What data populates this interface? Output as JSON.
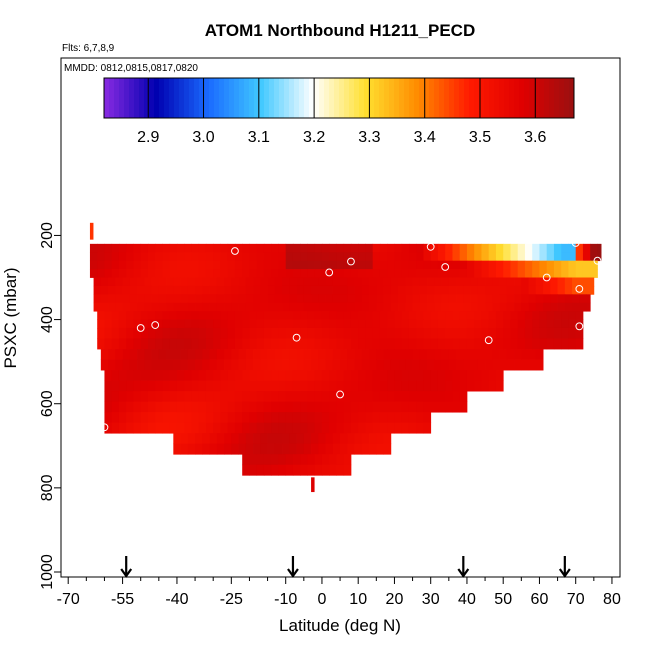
{
  "chart_data": {
    "type": "heatmap",
    "title": "ATOM1 Northbound H1211_PECD",
    "annotations": [
      "Flts: 6,7,8,9",
      "MMDD: 0812,0815,0817,0820"
    ],
    "xlabel": "Latitude (deg N)",
    "ylabel": "PSXC (mbar)",
    "xlim": [
      -70,
      85
    ],
    "ylim": [
      1000,
      0
    ],
    "y_reversed": true,
    "grid": false,
    "x_ticks": [
      -70,
      -55,
      -40,
      -25,
      -10,
      0,
      10,
      20,
      30,
      40,
      50,
      60,
      70,
      80
    ],
    "x_tick_labels": [
      "-70",
      "-55",
      "-40",
      "-25",
      "-10",
      "0",
      "10",
      "20",
      "30",
      "40",
      "50",
      "60",
      "70",
      "80"
    ],
    "y_ticks": [
      200,
      400,
      600,
      800,
      1000
    ],
    "y_tick_labels": [
      "200",
      "400",
      "600",
      "800",
      "1000"
    ],
    "colorbar": {
      "placement": "top",
      "range": [
        2.82,
        3.67
      ],
      "ticks": [
        2.9,
        3.0,
        3.1,
        3.2,
        3.3,
        3.4,
        3.5,
        3.6
      ],
      "tick_labels": [
        "2.9",
        "3.0",
        "3.1",
        "3.2",
        "3.3",
        "3.4",
        "3.5",
        "3.6"
      ],
      "colors": [
        "#8a2be2",
        "#0000b0",
        "#1a6bff",
        "#40c8ff",
        "#ffffff",
        "#ffe030",
        "#ff8c00",
        "#ff1a00",
        "#e00000",
        "#9a1010"
      ]
    },
    "latitude_markers": [
      -54,
      -8,
      39,
      67
    ],
    "pressure_bands": [
      {
        "p": [
          220,
          260
        ],
        "lat": [
          -64,
          77
        ]
      },
      {
        "p": [
          260,
          300
        ],
        "lat": [
          -64,
          76
        ]
      },
      {
        "p": [
          300,
          340
        ],
        "lat": [
          -63,
          75
        ]
      },
      {
        "p": [
          340,
          380
        ],
        "lat": [
          -63,
          74
        ]
      },
      {
        "p": [
          380,
          420
        ],
        "lat": [
          -62,
          72
        ]
      },
      {
        "p": [
          420,
          470
        ],
        "lat": [
          -62,
          72
        ]
      },
      {
        "p": [
          470,
          520
        ],
        "lat": [
          -61,
          61
        ]
      },
      {
        "p": [
          520,
          570
        ],
        "lat": [
          -60,
          50
        ]
      },
      {
        "p": [
          570,
          620
        ],
        "lat": [
          -60,
          40
        ]
      },
      {
        "p": [
          620,
          670
        ],
        "lat": [
          -60,
          30
        ]
      },
      {
        "p": [
          670,
          720
        ],
        "lat": [
          -41,
          19
        ]
      },
      {
        "p": [
          720,
          770
        ],
        "lat": [
          -22,
          8
        ]
      }
    ],
    "sample_points": [
      {
        "lat": -24,
        "p": 237
      },
      {
        "lat": 2,
        "p": 288
      },
      {
        "lat": 8,
        "p": 262
      },
      {
        "lat": 30,
        "p": 227
      },
      {
        "lat": 34,
        "p": 275
      },
      {
        "lat": 62,
        "p": 300
      },
      {
        "lat": 70,
        "p": 218
      },
      {
        "lat": 71,
        "p": 327
      },
      {
        "lat": 76,
        "p": 260
      },
      {
        "lat": -50,
        "p": 420
      },
      {
        "lat": -46,
        "p": 413
      },
      {
        "lat": -7,
        "p": 443
      },
      {
        "lat": 46,
        "p": 449
      },
      {
        "lat": 71,
        "p": 416
      },
      {
        "lat": 5,
        "p": 578
      },
      {
        "lat": -60,
        "p": 656
      }
    ]
  }
}
